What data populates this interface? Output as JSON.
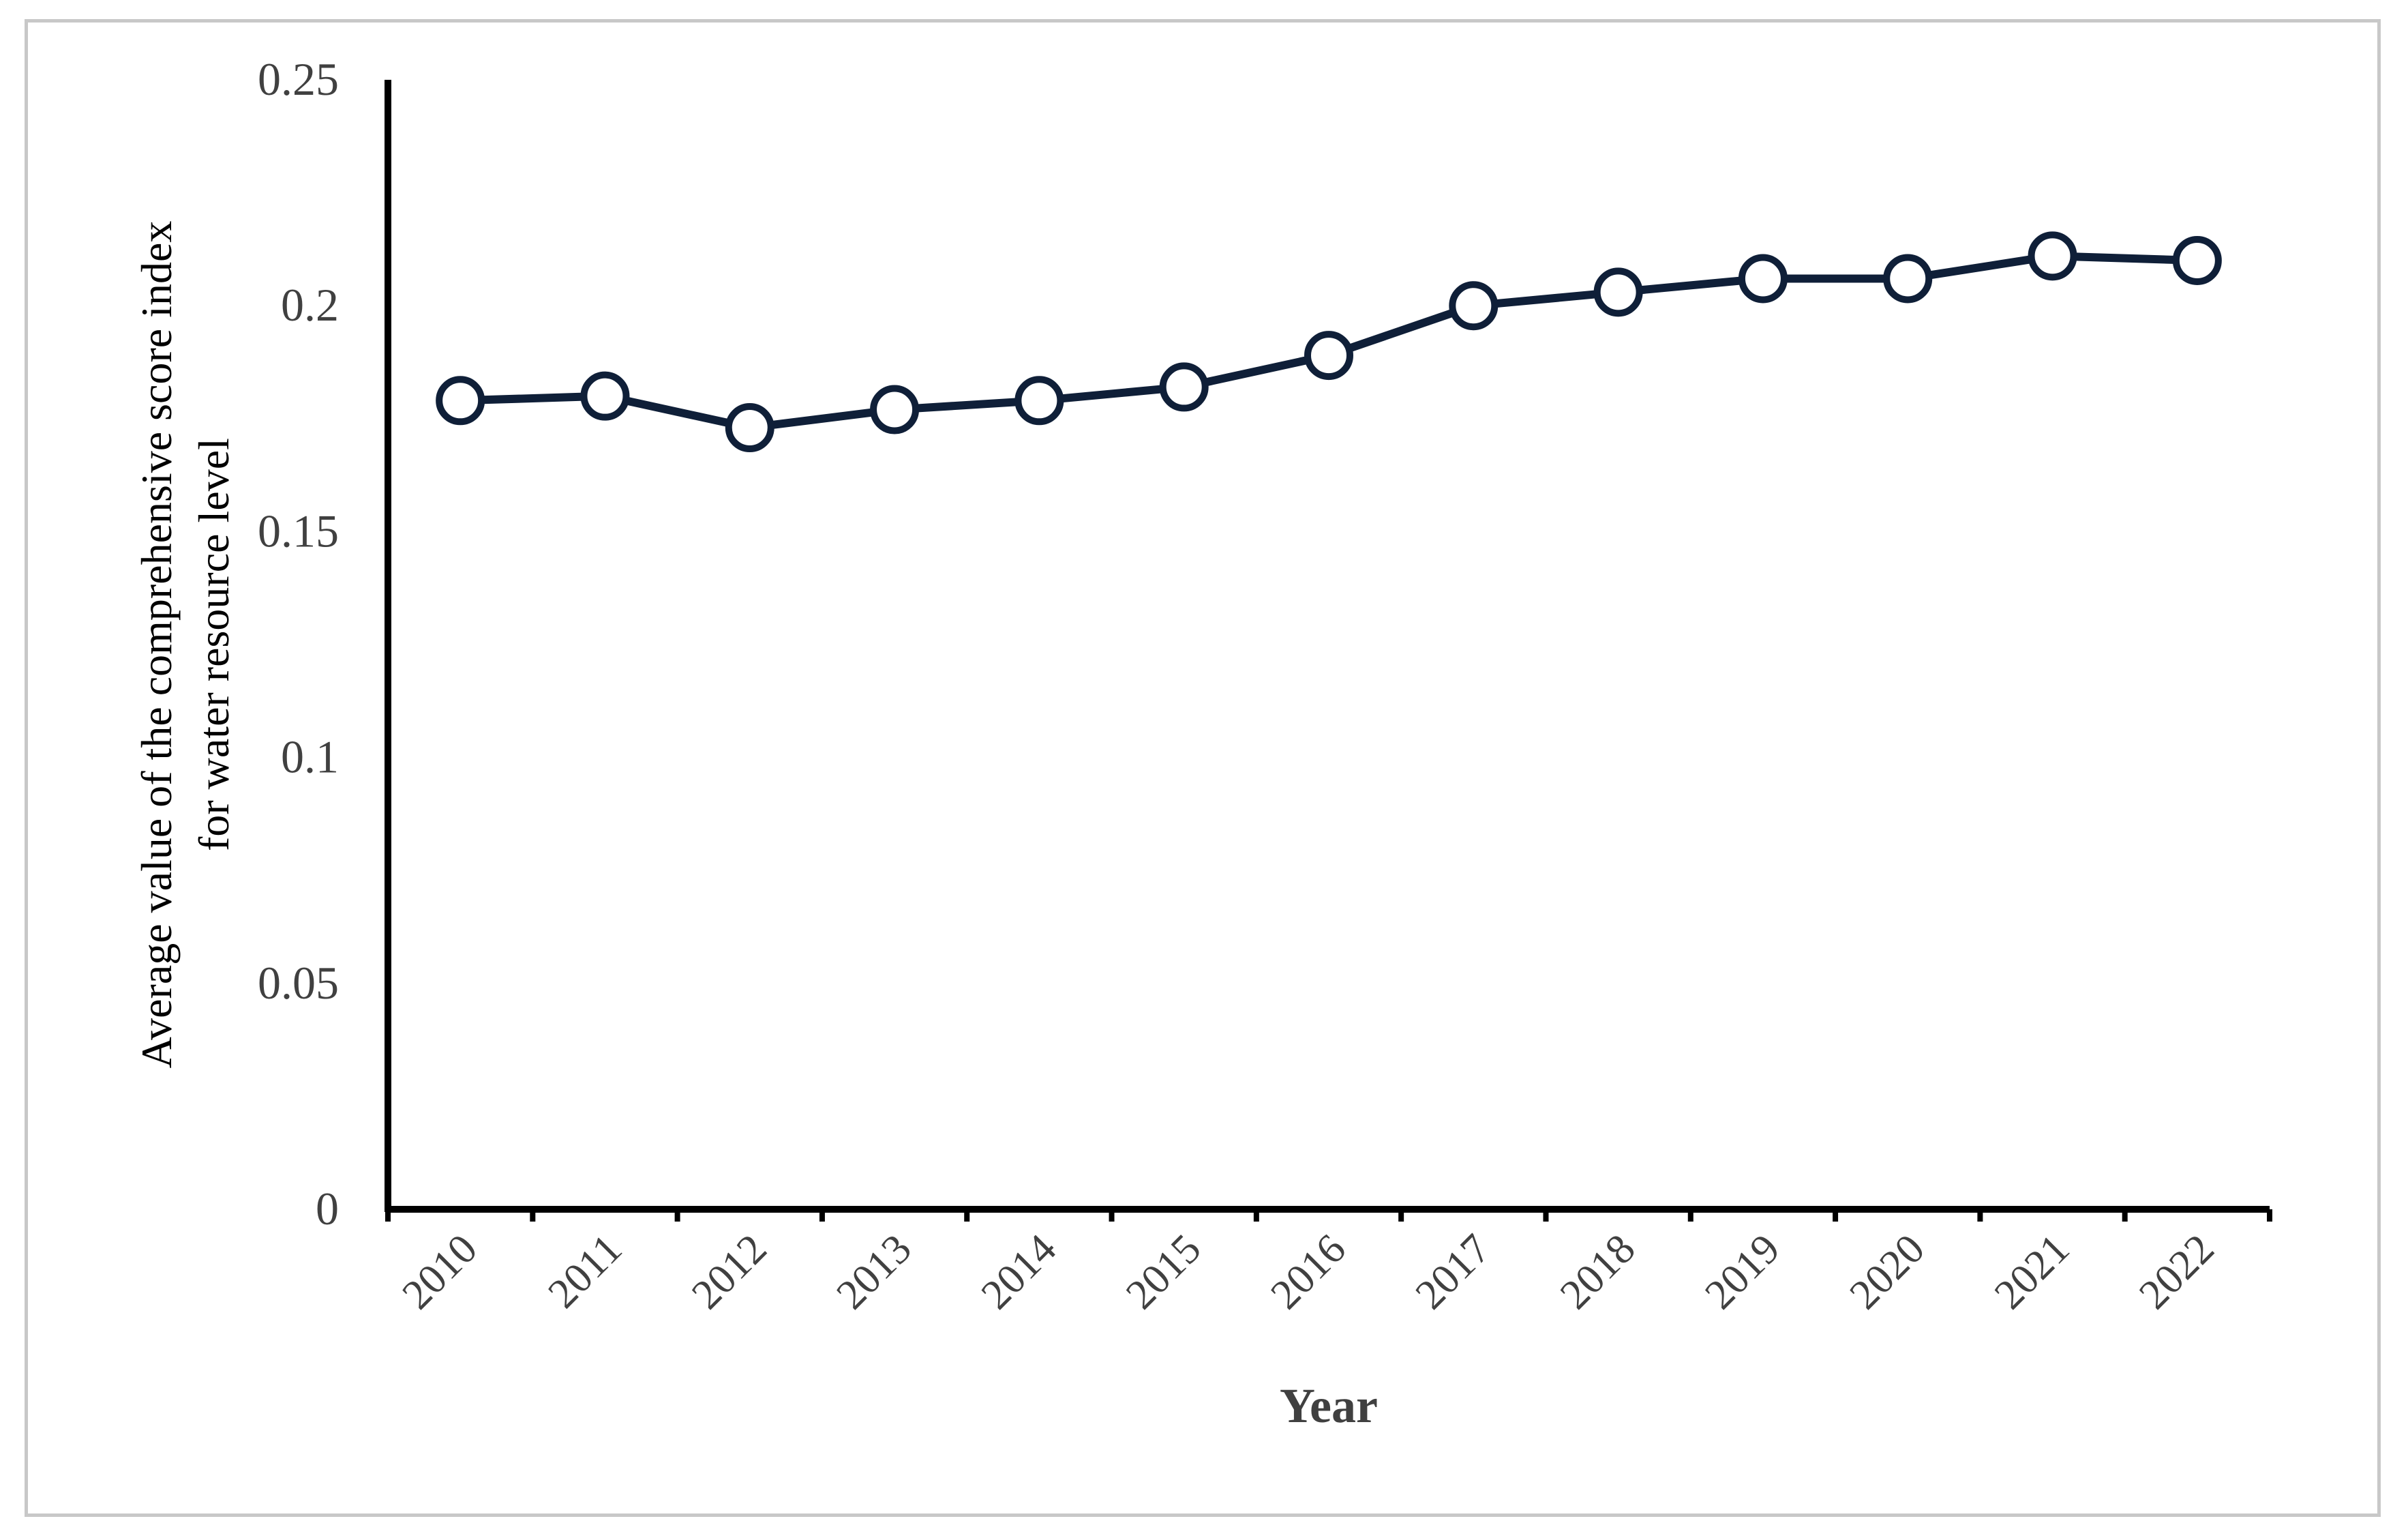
{
  "chart_data": {
    "type": "line",
    "title": "",
    "xlabel": "Year",
    "ylabel": "Average value of the comprehensive score index for water resource level",
    "ylabel_lines": [
      "Average value of the comprehensive score index",
      "for water resource level"
    ],
    "categories": [
      "2010",
      "2011",
      "2012",
      "2013",
      "2014",
      "2015",
      "2016",
      "2017",
      "2018",
      "2019",
      "2020",
      "2021",
      "2022"
    ],
    "series": [
      {
        "values": [
          0.179,
          0.18,
          0.173,
          0.177,
          0.179,
          0.182,
          0.189,
          0.2,
          0.203,
          0.206,
          0.206,
          0.211,
          0.21
        ]
      }
    ],
    "ylim": [
      0,
      0.25
    ],
    "yticks": [
      0,
      0.05,
      0.1,
      0.15,
      0.2,
      0.25
    ],
    "ytick_labels": [
      "0",
      "0.05",
      "0.1",
      "0.15",
      "0.2",
      "0.25"
    ],
    "grid": false,
    "legend": "none",
    "colors": {
      "line": "#0f1f38",
      "marker_fill": "#ffffff",
      "axis": "#000000",
      "text": "#404040"
    }
  }
}
